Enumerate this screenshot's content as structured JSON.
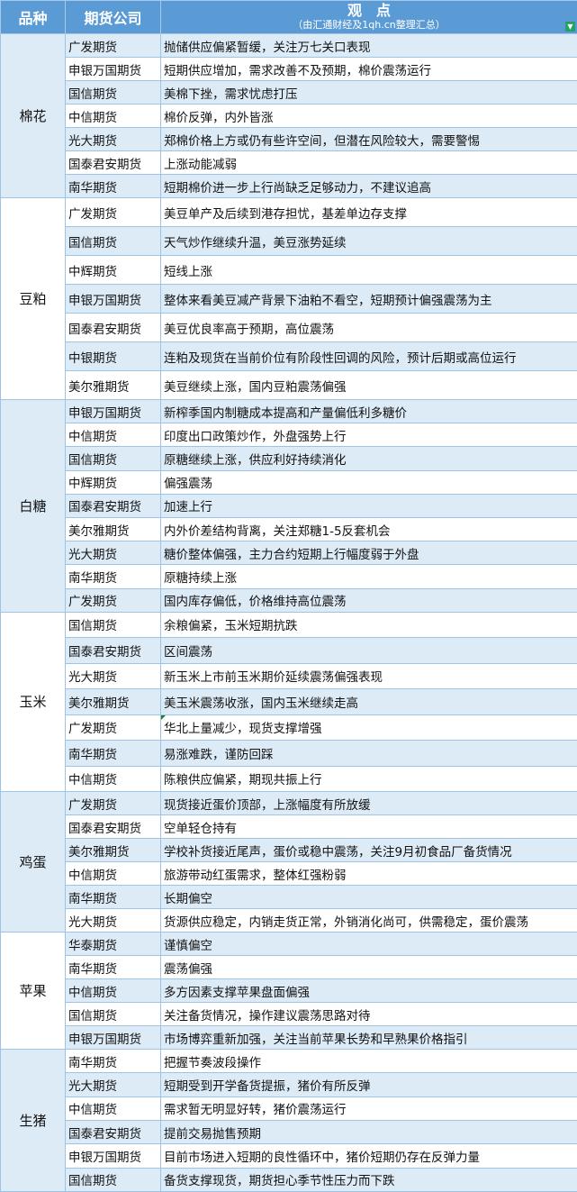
{
  "header": {
    "col_variety": "品种",
    "col_company": "期货公司",
    "col_view_title": "观　点",
    "col_view_subtitle": "（由汇通财经及1qh.cn整理汇总）",
    "filter_icon": "filter-icon"
  },
  "colors": {
    "header_bg": "#5b9bd5",
    "row_shaded": "#ddebf7",
    "border": "#9dc3e6"
  },
  "groups": [
    {
      "name": "棉花",
      "shaded": true,
      "first_row_shaded": true,
      "rows": [
        {
          "company": "广发期货",
          "view": "抛储供应偏紧暂缓，关注万七关口表现"
        },
        {
          "company": "申银万国期货",
          "view": "短期供应增加，需求改善不及预期，棉价震荡运行"
        },
        {
          "company": "国信期货",
          "view": "美棉下挫，需求忧虑打压"
        },
        {
          "company": "中信期货",
          "view": "棉价反弹，内外皆涨"
        },
        {
          "company": "光大期货",
          "view": "郑棉价格上方或仍有些许空间，但潜在风险较大，需要警惕"
        },
        {
          "company": "国泰君安期货",
          "view": "上涨动能减弱"
        },
        {
          "company": "南华期货",
          "view": "短期棉价进一步上行尚缺乏足够动力，不建议追高"
        }
      ]
    },
    {
      "name": "豆粕",
      "shaded": false,
      "first_row_shaded": false,
      "rows": [
        {
          "company": "广发期货",
          "view": "美豆单产及后续到港存担忧，基差单边存支撑"
        },
        {
          "company": "国信期货",
          "view": "天气炒作继续升温，美豆涨势延续"
        },
        {
          "company": "中辉期货",
          "view": "短线上涨"
        },
        {
          "company": "申银万国期货",
          "view": "整体来看美豆减产背景下油粕不看空，短期预计偏强震荡为主"
        },
        {
          "company": "国泰君安期货",
          "view": "美豆优良率高于预期，高位震荡"
        },
        {
          "company": "中银期货",
          "view": "连粕及现货在当前价位有阶段性回调的风险，预计后期或高位运行"
        },
        {
          "company": "美尔雅期货",
          "view": "美豆继续上涨，国内豆粕震荡偏强"
        }
      ]
    },
    {
      "name": "白糖",
      "shaded": true,
      "first_row_shaded": true,
      "rows": [
        {
          "company": "申银万国期货",
          "view": "新榨季国内制糖成本提高和产量偏低利多糖价"
        },
        {
          "company": "中信期货",
          "view": "印度出口政策炒作，外盘强势上行"
        },
        {
          "company": "国信期货",
          "view": "原糖继续上涨，供应利好持续消化"
        },
        {
          "company": "中辉期货",
          "view": "偏强震荡"
        },
        {
          "company": "国泰君安期货",
          "view": "加速上行"
        },
        {
          "company": "美尔雅期货",
          "view": "内外价差结构背离，关注郑糖1-5反套机会"
        },
        {
          "company": "光大期货",
          "view": "糖价整体偏强，主力合约短期上行幅度弱于外盘"
        },
        {
          "company": "南华期货",
          "view": "原糖持续上涨"
        },
        {
          "company": "广发期货",
          "view": "国内库存偏低，价格维持高位震荡"
        }
      ]
    },
    {
      "name": "玉米",
      "shaded": false,
      "first_row_shaded": false,
      "rows": [
        {
          "company": "国信期货",
          "view": "余粮偏紧，玉米短期抗跌"
        },
        {
          "company": "国泰君安期货",
          "view": "区间震荡"
        },
        {
          "company": "光大期货",
          "view": "新玉米上市前玉米期价延续震荡偏强表现"
        },
        {
          "company": "美尔雅期货",
          "view": "美玉米震荡收涨，国内玉米继续走高"
        },
        {
          "company": "广发期货",
          "view": "华北上量减少，现货支撑增强",
          "comment_marker": true
        },
        {
          "company": "南华期货",
          "view": "易涨难跌，谨防回踩"
        },
        {
          "company": "中信期货",
          "view": "陈粮供应偏紧，期现共振上行"
        }
      ]
    },
    {
      "name": "鸡蛋",
      "shaded": true,
      "first_row_shaded": true,
      "rows": [
        {
          "company": "广发期货",
          "view": "现货接近蛋价顶部，上涨幅度有所放缓"
        },
        {
          "company": "国泰君安期货",
          "view": "空单轻仓持有"
        },
        {
          "company": "美尔雅期货",
          "view": "学校补货接近尾声，蛋价或稳中震荡，关注9月初食品厂备货情况"
        },
        {
          "company": "中信期货",
          "view": "旅游带动红蛋需求，整体红强粉弱"
        },
        {
          "company": "南华期货",
          "view": "长期偏空"
        },
        {
          "company": "光大期货",
          "view": "货源供应稳定，内销走货正常，外销消化尚可，供需稳定，蛋价震荡"
        }
      ]
    },
    {
      "name": "苹果",
      "shaded": false,
      "first_row_shaded": true,
      "rows": [
        {
          "company": "华泰期货",
          "view": "谨慎偏空"
        },
        {
          "company": "南华期货",
          "view": "震荡偏强"
        },
        {
          "company": "中信期货",
          "view": "多方因素支撑苹果盘面偏强"
        },
        {
          "company": "国信期货",
          "view": "关注备货情况，操作建议震荡思路对待"
        },
        {
          "company": "申银万国期货",
          "view": "市场博弈重新加强，关注当前苹果长势和早熟果价格指引"
        }
      ]
    },
    {
      "name": "生猪",
      "shaded": true,
      "first_row_shaded": false,
      "rows": [
        {
          "company": "南华期货",
          "view": "把握节奏波段操作"
        },
        {
          "company": "光大期货",
          "view": "短期受到开学备货提振，猪价有所反弹"
        },
        {
          "company": "中信期货",
          "view": "需求暂无明显好转，猪价震荡运行"
        },
        {
          "company": "国泰君安期货",
          "view": "提前交易抛售预期"
        },
        {
          "company": "申银万国期货",
          "view": "目前市场进入短期的良性循环中，猪价短期仍存在反弹力量"
        },
        {
          "company": "国信期货",
          "view": "备货支撑现货，期货担心季节性压力而下跌"
        }
      ]
    }
  ]
}
